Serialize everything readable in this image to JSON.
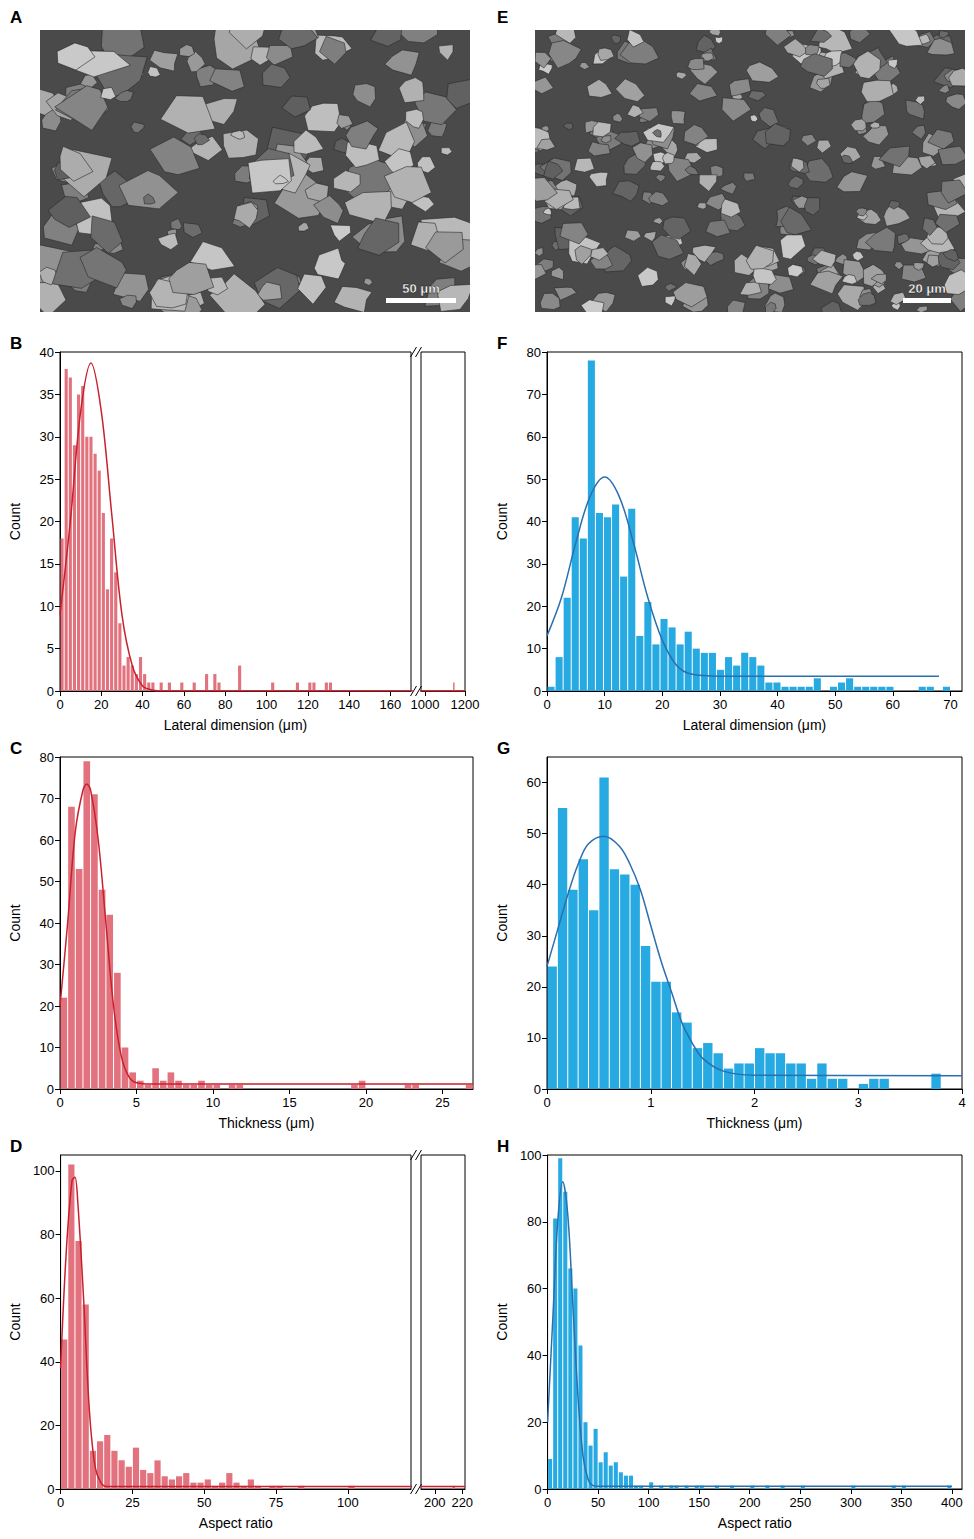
{
  "images": [
    {
      "panel": "A",
      "scale_bar": "50 μm"
    },
    {
      "panel": "E",
      "scale_bar": "20 μm"
    }
  ],
  "chart_data": [
    {
      "panel": "B",
      "type": "histogram",
      "x_label": "Lateral dimension (μm)",
      "y_label": "Count",
      "color": "#e2737e",
      "grid": false,
      "bins": [
        0,
        2,
        4,
        6,
        8,
        10,
        12,
        14,
        16,
        18,
        20,
        22,
        24,
        26,
        28,
        30,
        32,
        34,
        36,
        38,
        40,
        42,
        44,
        46,
        48,
        50,
        52,
        54,
        56,
        58,
        60,
        62,
        64,
        66,
        68,
        70,
        72,
        74,
        76,
        78,
        80,
        82,
        84,
        86,
        88,
        90,
        92,
        94,
        96,
        98,
        100,
        102,
        104,
        106,
        108,
        110,
        112,
        114,
        116,
        118,
        120,
        122,
        124,
        126,
        128,
        130,
        132,
        134,
        1138,
        1140
      ],
      "counts": [
        18,
        38,
        37,
        29,
        35,
        36,
        30,
        30,
        28,
        26,
        21,
        12,
        18,
        14,
        8,
        3,
        4,
        3,
        2,
        4,
        2,
        1,
        1,
        0,
        1,
        0,
        1,
        0,
        0,
        1,
        0,
        0,
        1,
        0,
        0,
        2,
        0,
        2,
        1,
        0,
        0,
        0,
        0,
        3,
        0,
        0,
        0,
        0,
        0,
        0,
        0,
        1,
        0,
        0,
        0,
        0,
        0,
        1,
        0,
        0,
        1,
        1,
        0,
        0,
        1,
        1,
        0,
        0,
        1
      ],
      "fit": {
        "color": "#c8212d",
        "x": [
          0,
          5,
          10,
          15,
          20,
          25,
          30,
          35,
          40,
          45,
          50,
          170,
          1200
        ],
        "y": [
          9,
          20,
          33,
          38.7,
          33,
          21,
          9,
          3,
          0.6,
          0.1,
          0,
          0,
          0
        ]
      },
      "xlim": [
        0,
        1200
      ],
      "x_break": [
        170,
        980
      ],
      "xticks": [
        0,
        20,
        40,
        60,
        80,
        100,
        120,
        140,
        160,
        1000,
        1200
      ],
      "ylim": [
        0,
        40
      ],
      "yticks": [
        0,
        5,
        10,
        15,
        20,
        25,
        30,
        35,
        40
      ]
    },
    {
      "panel": "C",
      "type": "histogram",
      "x_label": "Thickness (μm)",
      "y_label": "Count",
      "color": "#e2737e",
      "grid": false,
      "bins": [
        0,
        0.5,
        1,
        1.5,
        2,
        2.5,
        3,
        3.5,
        4,
        4.5,
        5,
        5.5,
        6,
        6.5,
        7,
        7.5,
        8,
        8.5,
        9,
        9.5,
        10,
        10.5,
        11,
        11.5,
        12,
        12.5,
        13,
        13.5,
        14,
        14.5,
        15,
        15.5,
        16,
        16.5,
        17,
        17.5,
        18,
        18.5,
        19,
        19.5,
        20,
        20.5,
        21,
        21.5,
        22,
        22.5,
        23,
        23.5,
        24,
        24.5,
        25,
        25.5,
        26,
        26.5,
        27
      ],
      "counts": [
        22,
        68,
        53,
        79,
        71,
        48,
        42,
        28,
        10,
        4,
        2,
        1,
        5,
        2,
        4,
        2,
        1,
        1,
        2,
        1,
        1,
        0,
        1,
        1,
        0,
        0,
        0,
        0,
        0,
        0,
        0,
        0,
        0,
        0,
        0,
        0,
        0,
        0,
        1,
        2,
        0,
        0,
        0,
        0,
        0,
        1,
        1,
        0,
        0,
        0,
        0,
        0,
        0,
        1
      ],
      "fit": {
        "color": "#c8212d",
        "x": [
          0,
          0.5,
          1,
          1.5,
          1.75,
          2,
          2.5,
          3,
          3.5,
          4,
          4.5,
          5,
          6,
          27
        ],
        "y": [
          20,
          40,
          62,
          72,
          73.5,
          72,
          60,
          40,
          20,
          8,
          3,
          1.5,
          1.2,
          1.2
        ]
      },
      "xlim": [
        0,
        27
      ],
      "xticks": [
        0,
        5,
        10,
        15,
        20,
        25
      ],
      "ylim": [
        0,
        80
      ],
      "yticks": [
        0,
        10,
        20,
        30,
        40,
        50,
        60,
        70,
        80
      ]
    },
    {
      "panel": "D",
      "type": "histogram",
      "x_label": "Aspect ratio",
      "y_label": "Count",
      "color": "#e2737e",
      "grid": false,
      "bins": [
        0,
        2.5,
        5,
        7.5,
        10,
        12.5,
        15,
        17.5,
        20,
        22.5,
        25,
        27.5,
        30,
        32.5,
        35,
        37.5,
        40,
        42.5,
        45,
        47.5,
        50,
        52.5,
        55,
        57.5,
        60,
        62.5,
        65,
        67.5,
        70,
        72.5,
        75,
        77.5,
        80,
        82.5,
        85,
        87.5,
        90,
        92.5,
        95,
        97.5,
        100,
        102.5,
        105,
        107.5,
        110,
        112.5,
        115,
        117.5,
        120,
        212.5,
        215
      ],
      "counts": [
        47,
        102,
        78,
        58,
        12,
        15,
        17,
        12,
        9,
        7,
        13,
        6,
        5,
        9,
        4,
        3,
        4,
        5,
        2,
        2,
        3,
        1,
        2,
        5,
        2,
        1,
        3,
        1,
        0,
        1,
        1,
        0,
        0,
        1,
        0,
        0,
        0,
        0,
        0,
        0,
        1,
        0,
        0,
        0,
        0,
        0,
        0,
        0,
        0,
        1
      ],
      "fit": {
        "color": "#c8212d",
        "x": [
          0,
          2,
          4,
          5,
          6,
          8,
          10,
          12,
          14,
          16,
          20,
          122,
          190,
          222
        ],
        "y": [
          38,
          75,
          97,
          98,
          90,
          60,
          25,
          7,
          2,
          0.8,
          0.8,
          0.8,
          0.8,
          0.8
        ]
      },
      "xlim": [
        0,
        222
      ],
      "x_break": [
        122,
        190
      ],
      "xticks": [
        0,
        25,
        50,
        75,
        100,
        200,
        220
      ],
      "ylim": [
        0,
        105
      ],
      "yticks": [
        0,
        20,
        40,
        60,
        80,
        100
      ]
    },
    {
      "panel": "F",
      "type": "histogram",
      "x_label": "Lateral dimension (μm)",
      "y_label": "Count",
      "color": "#27aae1",
      "grid": false,
      "bins": [
        0,
        1.4,
        2.8,
        4.2,
        5.6,
        7,
        8.4,
        9.8,
        11.2,
        12.6,
        14,
        15.4,
        16.8,
        18.2,
        19.6,
        21,
        22.4,
        23.8,
        25.2,
        26.6,
        28,
        29.4,
        30.8,
        32.2,
        33.6,
        35,
        36.4,
        37.8,
        39.2,
        40.6,
        42,
        43.4,
        44.8,
        46.2,
        47.6,
        49,
        50.4,
        51.8,
        53.2,
        54.6,
        56,
        57.4,
        58.8,
        60.2,
        61.6,
        63,
        64.4,
        65.8,
        67.2,
        68.6,
        70
      ],
      "counts": [
        1,
        8,
        22,
        41,
        36,
        78,
        42,
        41,
        44,
        27,
        43,
        13,
        21,
        11,
        17,
        15,
        11,
        14,
        10,
        9,
        9,
        5,
        8,
        6,
        9,
        8,
        6,
        2,
        2,
        1,
        1,
        1,
        1,
        3,
        0,
        1,
        2,
        3,
        1,
        1,
        1,
        1,
        1,
        0,
        0,
        0,
        1,
        1,
        0,
        1
      ],
      "fit": {
        "color": "#2a6fb0",
        "x": [
          0,
          2.5,
          5,
          7.5,
          10,
          12.5,
          15,
          17.5,
          20,
          22.5,
          25,
          30,
          68
        ],
        "y": [
          13,
          22,
          35,
          46,
          50.5,
          46,
          35,
          22,
          12,
          6,
          4,
          3.5,
          3.5
        ]
      },
      "xlim": [
        0,
        72
      ],
      "xticks": [
        0,
        10,
        20,
        30,
        40,
        50,
        60,
        70
      ],
      "ylim": [
        0,
        80
      ],
      "yticks": [
        0,
        10,
        20,
        30,
        40,
        50,
        60,
        70,
        80
      ]
    },
    {
      "panel": "G",
      "type": "histogram",
      "x_label": "Thickness (μm)",
      "y_label": "Count",
      "color": "#27aae1",
      "grid": false,
      "bins": [
        0,
        0.1,
        0.2,
        0.3,
        0.4,
        0.5,
        0.6,
        0.7,
        0.8,
        0.9,
        1,
        1.1,
        1.2,
        1.3,
        1.4,
        1.5,
        1.6,
        1.7,
        1.8,
        1.9,
        2,
        2.1,
        2.2,
        2.3,
        2.4,
        2.5,
        2.6,
        2.7,
        2.8,
        2.9,
        3,
        3.1,
        3.2,
        3.3,
        3.4,
        3.5,
        3.6,
        3.7,
        3.8,
        3.9,
        4
      ],
      "counts": [
        24,
        55,
        39,
        45,
        35,
        61,
        43,
        42,
        40,
        28,
        21,
        21,
        15,
        13,
        8,
        9,
        7,
        4,
        5,
        5,
        8,
        7,
        7,
        5,
        5,
        2,
        5,
        2,
        2,
        0,
        1,
        2,
        2,
        0,
        0,
        0,
        0,
        3,
        0,
        0
      ],
      "fit": {
        "color": "#2a6fb0",
        "x": [
          0,
          0.1,
          0.2,
          0.3,
          0.4,
          0.55,
          0.7,
          0.8,
          0.9,
          1,
          1.1,
          1.2,
          1.3,
          1.4,
          1.5,
          1.7,
          2,
          4
        ],
        "y": [
          24,
          31,
          38,
          44,
          48,
          49.5,
          47.5,
          44,
          39,
          32,
          25,
          19,
          13,
          9,
          6,
          3.5,
          2.7,
          2.6
        ]
      },
      "xlim": [
        0,
        4
      ],
      "xticks": [
        0,
        1,
        2,
        3,
        4
      ],
      "ylim": [
        0,
        65
      ],
      "yticks": [
        0,
        10,
        20,
        30,
        40,
        50,
        60
      ]
    },
    {
      "panel": "H",
      "type": "histogram",
      "x_label": "Aspect ratio",
      "y_label": "Count",
      "color": "#27aae1",
      "grid": false,
      "bins": [
        0,
        5,
        10,
        15,
        20,
        25,
        30,
        35,
        40,
        45,
        50,
        55,
        60,
        65,
        70,
        75,
        80,
        85,
        90,
        95,
        100,
        105,
        110,
        115,
        120,
        125,
        130,
        135,
        140,
        145,
        150,
        155,
        160,
        165,
        170,
        175,
        180,
        185,
        190,
        195,
        200,
        205,
        210,
        215,
        220,
        225,
        230,
        235,
        240,
        245,
        250,
        255,
        260,
        265,
        270,
        275,
        280,
        285,
        290,
        295,
        300,
        305,
        310,
        315,
        320,
        325,
        330,
        335,
        340,
        345,
        350,
        355,
        360,
        365,
        370,
        375,
        380,
        385,
        390,
        395,
        400
      ],
      "counts": [
        9,
        81,
        99,
        89,
        66,
        60,
        43,
        20,
        13,
        18,
        8,
        11,
        7,
        8,
        5,
        4,
        4,
        1,
        1,
        0,
        2,
        0,
        1,
        0,
        1,
        1,
        0,
        1,
        0,
        1,
        1,
        0,
        0,
        1,
        0,
        0,
        1,
        0,
        0,
        0,
        1,
        0,
        0,
        1,
        0,
        0,
        1,
        0,
        0,
        0,
        1,
        0,
        0,
        0,
        0,
        0,
        0,
        0,
        0,
        0,
        1,
        0,
        0,
        0,
        0,
        0,
        0,
        0,
        1,
        0,
        1,
        0,
        0,
        0,
        0,
        0,
        0,
        0,
        0,
        1
      ],
      "fit": {
        "color": "#2a6fb0",
        "x": [
          0,
          5,
          10,
          15,
          20,
          25,
          30,
          35,
          40,
          45,
          50,
          400
        ],
        "y": [
          20,
          50,
          80,
          92,
          82,
          55,
          28,
          10,
          3,
          1,
          0.8,
          0.8
        ]
      },
      "xlim": [
        0,
        410
      ],
      "xticks": [
        0,
        50,
        100,
        150,
        200,
        250,
        300,
        350,
        400
      ],
      "ylim": [
        0,
        100
      ],
      "yticks": [
        0,
        20,
        40,
        60,
        80,
        100
      ]
    }
  ]
}
